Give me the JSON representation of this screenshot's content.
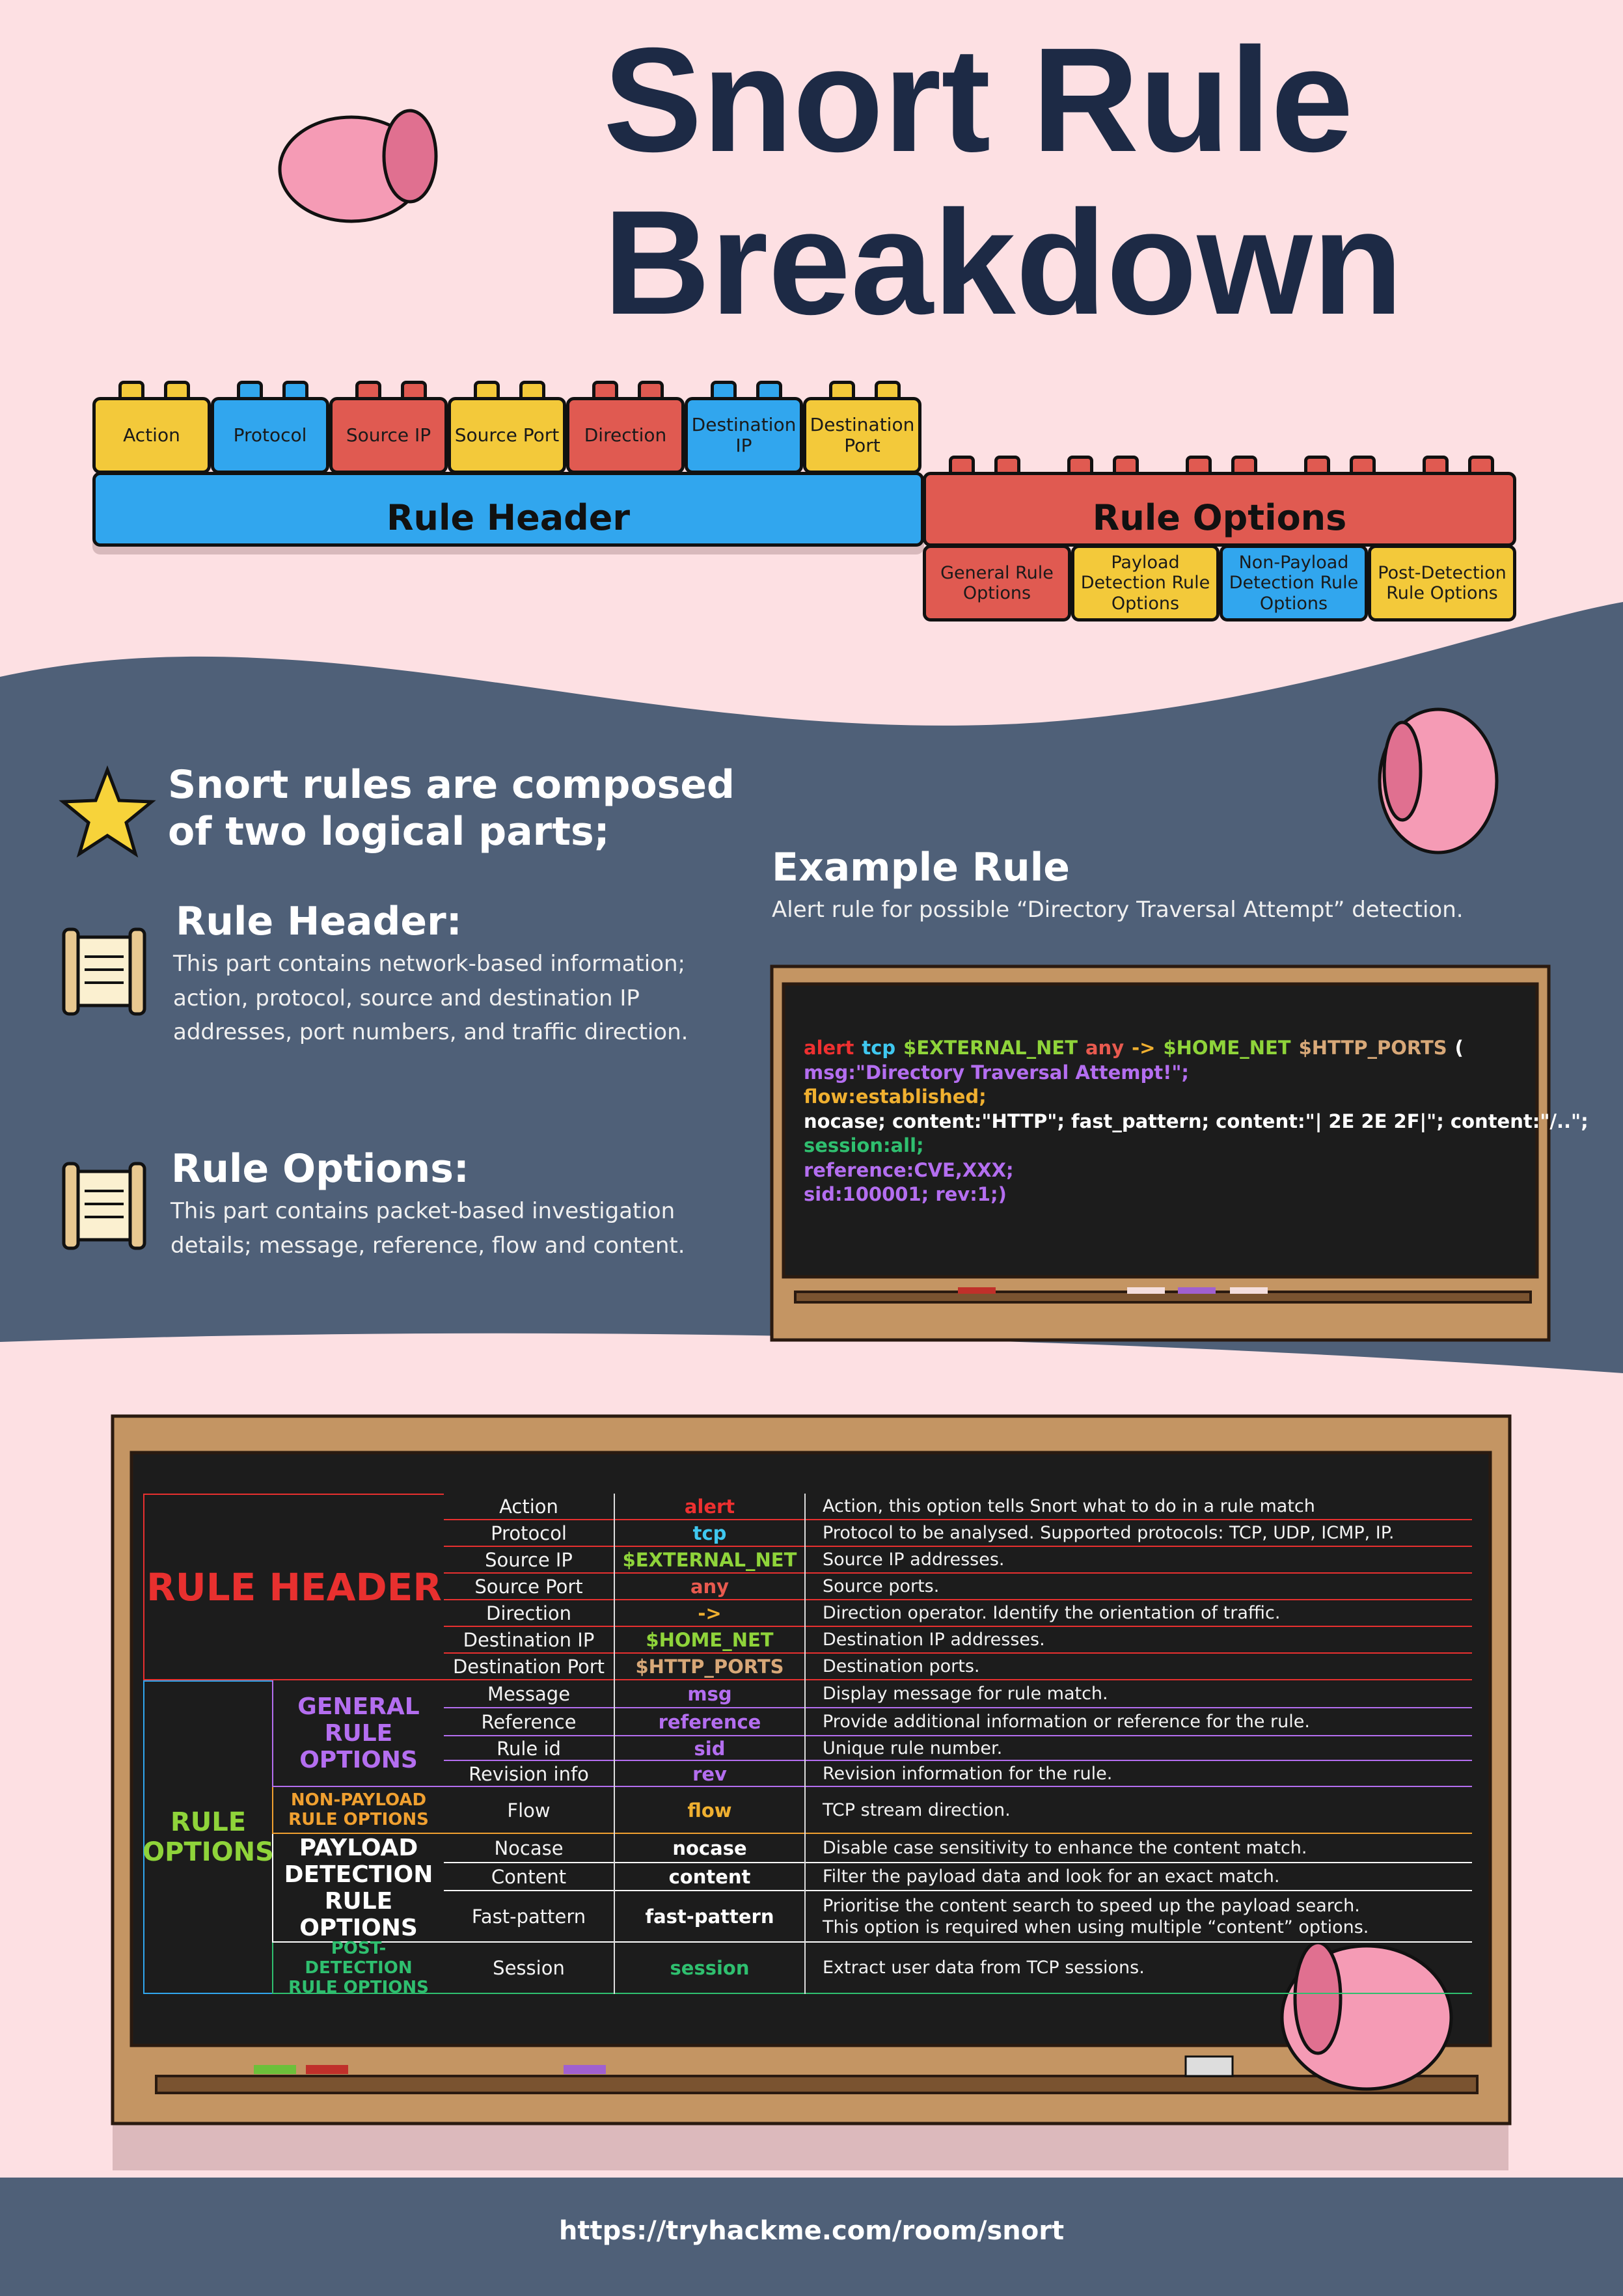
{
  "header": {
    "title_lines": [
      "Snort Rule",
      "Breakdown"
    ]
  },
  "diagram": {
    "header_label": "Rule Header",
    "header_blocks": [
      {
        "label": "Action",
        "color": "#f3c93a"
      },
      {
        "label": "Protocol",
        "color": "#31a6ee"
      },
      {
        "label": "Source IP",
        "color": "#e05a51"
      },
      {
        "label": "Source Port",
        "color": "#f3c93a"
      },
      {
        "label": "Direction",
        "color": "#e05a51"
      },
      {
        "label": "Destination IP",
        "color": "#31a6ee"
      },
      {
        "label": "Destination Port",
        "color": "#f3c93a"
      }
    ],
    "options_label": "Rule Options",
    "option_blocks": [
      {
        "label": "General Rule Options",
        "color": "#e05a51"
      },
      {
        "label": "Payload Detection Rule Options",
        "color": "#f3c93a"
      },
      {
        "label": "Non-Payload Detection Rule Options",
        "color": "#31a6ee"
      },
      {
        "label": "Post-Detection Rule Options",
        "color": "#f3c93a"
      }
    ]
  },
  "intro": "Snort rules are composed of two logical parts;",
  "sections": [
    {
      "title": "Rule Header:",
      "text": "This part contains network-based information; action, protocol, source and destination IP addresses, port numbers, and traffic direction."
    },
    {
      "title": "Rule Options:",
      "text": "This part contains packet-based investigation details; message, reference, flow and content."
    }
  ],
  "example": {
    "title": "Example Rule",
    "subtitle": "Alert rule for possible “Directory Traversal Attempt” detection.",
    "code_lines": [
      [
        {
          "text": "alert",
          "color": "#ee3030"
        },
        {
          "text": "tcp",
          "color": "#3fc8f0"
        },
        {
          "text": "$EXTERNAL_NET",
          "color": "#8fd43a"
        },
        {
          "text": "any",
          "color": "#e85a4f"
        },
        {
          "text": "->",
          "color": "#f0b030"
        },
        {
          "text": "$HOME_NET",
          "color": "#8fd43a"
        },
        {
          "text": "$HTTP_PORTS",
          "color": "#d8a878"
        },
        {
          "text": "(",
          "color": "#ffffff"
        }
      ],
      [
        {
          "text": "msg:\"Directory Traversal Attempt!\";",
          "color": "#b46ef0"
        }
      ],
      [
        {
          "text": "flow:established;",
          "color": "#f0b030"
        }
      ],
      [
        {
          "text": "nocase; content:\"HTTP\"; fast_pattern; content:\"| 2E 2E 2F|\"; content:\"/..\";",
          "color": "#ffffff"
        }
      ],
      [
        {
          "text": "session:all;",
          "color": "#2fbf6f"
        }
      ],
      [
        {
          "text": "reference:CVE,XXX;",
          "color": "#b46ef0"
        }
      ],
      [
        {
          "text": "sid:100001; rev:1;)",
          "color": "#b46ef0"
        }
      ]
    ]
  },
  "table": {
    "header_group": {
      "label": "RULE HEADER",
      "color": "#e8302f",
      "rows": [
        {
          "option": "Action",
          "keyword": "alert",
          "color": "#ee3030",
          "description": "Action, this option tells Snort what to do in a rule match"
        },
        {
          "option": "Protocol",
          "keyword": "tcp",
          "color": "#3fc8f0",
          "description": "Protocol to be analysed. Supported protocols: TCP, UDP, ICMP, IP."
        },
        {
          "option": "Source IP",
          "keyword": "$EXTERNAL_NET",
          "color": "#8fd43a",
          "description": "Source IP addresses."
        },
        {
          "option": "Source Port",
          "keyword": "any",
          "color": "#e85a4f",
          "description": "Source ports."
        },
        {
          "option": "Direction",
          "keyword": "->",
          "color": "#f0b030",
          "description": "Direction operator. Identify the orientation of traffic."
        },
        {
          "option": "Destination IP",
          "keyword": "$HOME_NET",
          "color": "#8fd43a",
          "description": "Destination IP addresses."
        },
        {
          "option": "Destination Port",
          "keyword": "$HTTP_PORTS",
          "color": "#d8a878",
          "description": "Destination ports."
        }
      ]
    },
    "options_group": {
      "label": "RULE OPTIONS",
      "color": "#8fd43a",
      "subgroups": [
        {
          "label": "GENERAL RULE OPTIONS",
          "color": "#b46ef0",
          "rows": [
            {
              "option": "Message",
              "keyword": "msg",
              "color": "#b46ef0",
              "description": "Display message for rule match."
            },
            {
              "option": "Reference",
              "keyword": "reference",
              "color": "#b46ef0",
              "description": "Provide additional information or reference for the rule."
            },
            {
              "option": "Rule id",
              "keyword": "sid",
              "color": "#b46ef0",
              "description": "Unique rule number."
            },
            {
              "option": "Revision info",
              "keyword": "rev",
              "color": "#b46ef0",
              "description": "Revision information for the rule."
            }
          ]
        },
        {
          "label": "NON-PAYLOAD RULE OPTIONS",
          "color": "#f0a030",
          "rows": [
            {
              "option": "Flow",
              "keyword": "flow",
              "color": "#f0b030",
              "description": "TCP stream direction."
            }
          ]
        },
        {
          "label": "PAYLOAD DETECTION RULE OPTIONS",
          "color": "#ffffff",
          "rows": [
            {
              "option": "Nocase",
              "keyword": "nocase",
              "color": "#ffffff",
              "description": "Disable case sensitivity to enhance the content match."
            },
            {
              "option": "Content",
              "keyword": "content",
              "color": "#ffffff",
              "description": "Filter the payload data and look for an exact match."
            },
            {
              "option": "Fast-pattern",
              "keyword": "fast-pattern",
              "color": "#ffffff",
              "description": "Prioritise the content search to speed up the payload search.\nThis option is required when using multiple “content” options."
            }
          ]
        },
        {
          "label": "POST-DETECTION RULE OPTIONS",
          "color": "#2fbf6f",
          "rows": [
            {
              "option": "Session",
              "keyword": "session",
              "color": "#2fbf6f",
              "description": "Extract user data from TCP sessions."
            }
          ]
        }
      ]
    }
  },
  "footer": {
    "url": "https://tryhackme.com/room/snort"
  }
}
